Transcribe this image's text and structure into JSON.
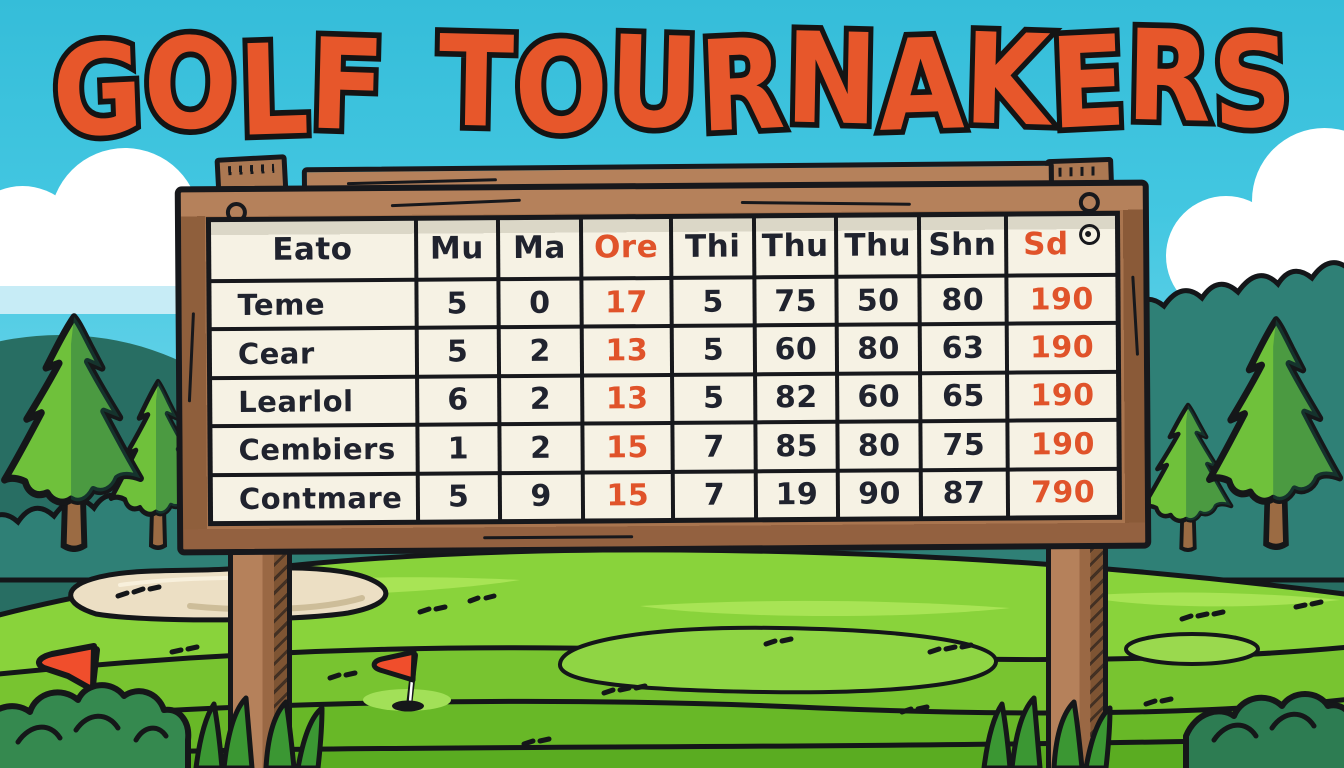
{
  "title": "GOLF TOURNAKERS",
  "scoreboard": {
    "columns": [
      {
        "label": "Eato"
      },
      {
        "label": "Mu"
      },
      {
        "label": "Ma"
      },
      {
        "label": "Ore",
        "accent": true
      },
      {
        "label": "Thi"
      },
      {
        "label": "Thu"
      },
      {
        "label": "Thu"
      },
      {
        "label": "Shn"
      },
      {
        "label": "Sd",
        "accent": true,
        "corner_icon": "swirl-icon"
      }
    ],
    "accent_value_indices": [
      2,
      7
    ],
    "rows": [
      {
        "name": "Teme",
        "values": [
          "5",
          "0",
          "17",
          "5",
          "75",
          "50",
          "80",
          "190"
        ]
      },
      {
        "name": "Cear",
        "values": [
          "5",
          "2",
          "13",
          "5",
          "60",
          "80",
          "63",
          "190"
        ]
      },
      {
        "name": "Learlol",
        "values": [
          "6",
          "2",
          "13",
          "5",
          "82",
          "60",
          "65",
          "190"
        ]
      },
      {
        "name": "Cembiers",
        "values": [
          "1",
          "2",
          "15",
          "7",
          "85",
          "80",
          "75",
          "190"
        ]
      },
      {
        "name": "Contmare",
        "values": [
          "5",
          "9",
          "15",
          "7",
          "19",
          "90",
          "87",
          "790"
        ]
      }
    ]
  },
  "chart_data": {
    "type": "table",
    "title": "GOLF TOURNAKERS",
    "columns": [
      "Eato",
      "Mu",
      "Ma",
      "Ore",
      "Thi",
      "Thu",
      "Thu",
      "Shn",
      "Sd"
    ],
    "rows": [
      [
        "Teme",
        5,
        0,
        17,
        5,
        75,
        50,
        80,
        190
      ],
      [
        "Cear",
        5,
        2,
        13,
        5,
        60,
        80,
        63,
        190
      ],
      [
        "Learlol",
        6,
        2,
        13,
        5,
        82,
        60,
        65,
        190
      ],
      [
        "Cembiers",
        1,
        2,
        15,
        7,
        85,
        80,
        75,
        190
      ],
      [
        "Contmare",
        5,
        9,
        15,
        7,
        19,
        90,
        87,
        790
      ]
    ]
  },
  "colors": {
    "accent_orange": "#e0532a",
    "title_orange": "#e7572b",
    "outline_black": "#17181c",
    "board_cream": "#f6f2e4",
    "wood_brown": "#a9754f",
    "sky_cyan": "#43c7e1",
    "fairway_green": "#89d33b",
    "hedge_teal": "#2f8076",
    "flag_red": "#f04e2c",
    "bunker_sand": "#ecdfc4"
  }
}
